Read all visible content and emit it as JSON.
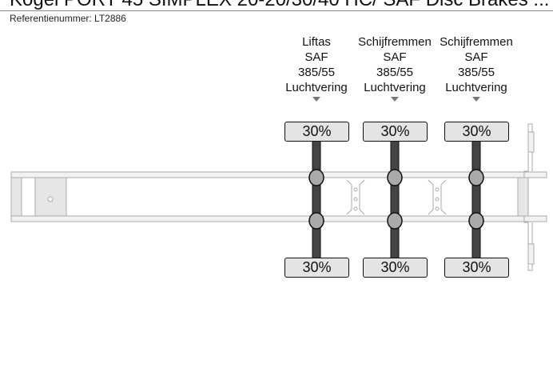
{
  "header": {
    "title": "Kogel PORT 45 SIMPLEX 20-20/30/40 HC/ SAF Disc Brakes ...",
    "reference": "Referentienummer: LT2886"
  },
  "axles": [
    {
      "type": "Liftas",
      "brand": "SAF",
      "tire": "385/55",
      "suspension": "Luchtvering",
      "top_load": "30%",
      "bottom_load": "30%"
    },
    {
      "type": "Schijfremmen",
      "brand": "SAF",
      "tire": "385/55",
      "suspension": "Luchtvering",
      "top_load": "30%",
      "bottom_load": "30%"
    },
    {
      "type": "Schijfremmen",
      "brand": "SAF",
      "tire": "385/55",
      "suspension": "Luchtvering",
      "top_load": "30%",
      "bottom_load": "30%"
    }
  ]
}
